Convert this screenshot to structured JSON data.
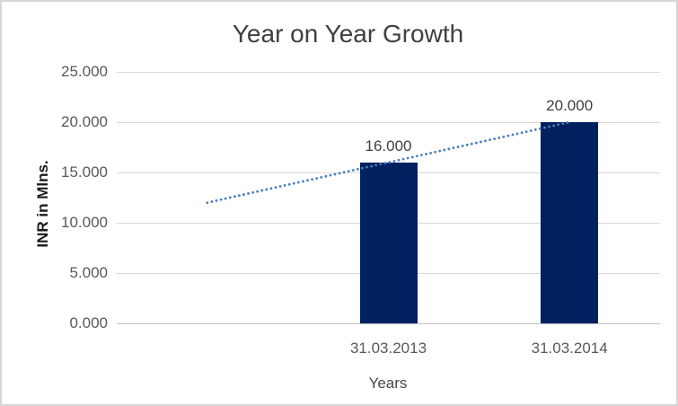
{
  "chart_data": {
    "type": "bar",
    "title": "Year on Year Growth",
    "categories": [
      "31.03.2013",
      "31.03.2014"
    ],
    "values": [
      16,
      20
    ],
    "data_labels": [
      "16.000",
      "20.000"
    ],
    "xlabel": "Years",
    "ylabel": "INR in Mlns.",
    "ylim": [
      0,
      25
    ],
    "yticks": [
      "25.000",
      "20.000",
      "15.000",
      "10.000",
      "5.000",
      "0.000"
    ],
    "grid": true,
    "legend": "none",
    "trendline": {
      "style": "dotted",
      "color": "#4a7ebb",
      "start_value": 12,
      "end_value": 20
    },
    "colors": {
      "bar": "#002060",
      "trendline": "#4a7ebb",
      "gridline": "#d9d9d9",
      "axis_line": "#bfbfbf",
      "title_text": "#404040",
      "tick_text": "#595959"
    }
  }
}
